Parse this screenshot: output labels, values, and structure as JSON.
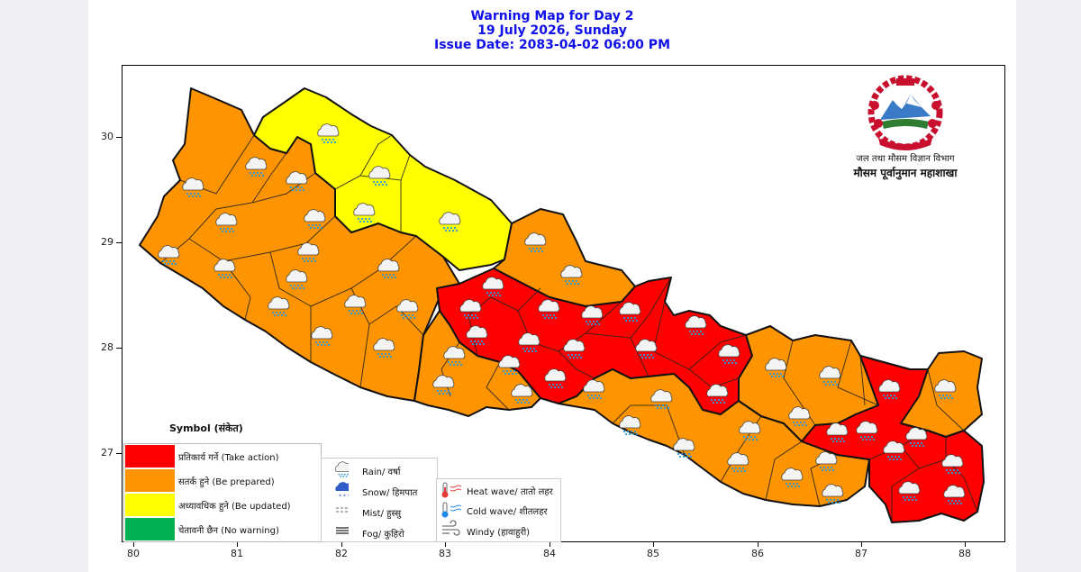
{
  "title": {
    "line1": "Warning Map for Day 2",
    "line2": "19 July 2026, Sunday",
    "line3": "Issue Date: 2083-04-02 06:00 PM"
  },
  "axes": {
    "x_ticks": [
      "80",
      "81",
      "82",
      "83",
      "84",
      "85",
      "86",
      "87",
      "88"
    ],
    "y_ticks": [
      "30",
      "29",
      "28",
      "27"
    ]
  },
  "agency": {
    "line1": "जल तथा मौसम विज्ञान विभाग",
    "line2": "मौसम पूर्वानुमान महाशाखा"
  },
  "symbol_legend": {
    "title": "Symbol (संकेत)",
    "levels": [
      {
        "label": "प्रतिकार्य गर्ने (Take action)",
        "color": "#ff0000"
      },
      {
        "label": "सतर्क हुने (Be prepared)",
        "color": "#fd9400"
      },
      {
        "label": "अध्यावधिक हुने (Be updated)",
        "color": "#ffff00"
      },
      {
        "label": "चेतावनी छैन (No warning)",
        "color": "#00b050"
      }
    ]
  },
  "weather_legend": {
    "col1": [
      "Rain/ वर्षा",
      "Snow/ हिमपात",
      "Mist/ हुस्सु",
      "Fog/ कुहिरो"
    ],
    "col2": [
      "Heat wave/ तातो लहर",
      "Cold wave/ शीतलहर",
      "Windy (हावाहुरी)"
    ]
  },
  "icons": [
    "rain-cloud-icon",
    "snow-cloud-icon",
    "mist-icon",
    "fog-icon",
    "thermometer-hot-icon",
    "thermometer-cold-icon",
    "wind-icon",
    "nepal-emblem-icon"
  ],
  "colors": {
    "title": "#1010e8",
    "take_action": "#ff0000",
    "be_prepared": "#fd9400",
    "be_updated": "#ffff00",
    "no_warning": "#00b050"
  }
}
